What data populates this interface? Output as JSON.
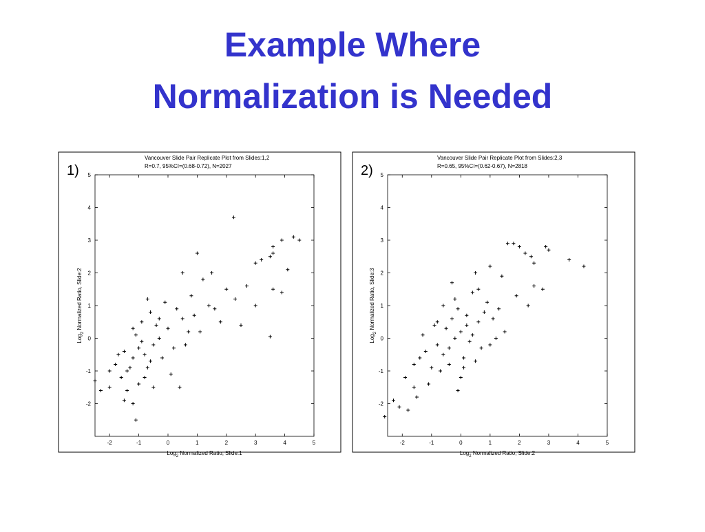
{
  "slide_title": [
    "Example Where",
    "Normalization is Needed"
  ],
  "chart_data": [
    {
      "type": "scatter",
      "panel_label": "1)",
      "title": [
        "Vancouver Slide Pair Replicate Plot from Slides:1,2",
        "R=0.7, 95%CI=(0.68-0.72), N=2027"
      ],
      "xlabel": [
        "Log",
        "2",
        " Normalized Ratio, Slide:1"
      ],
      "ylabel": [
        "Log",
        "2",
        " Normalized Ratio, Slide:2"
      ],
      "xlim": [
        -2.5,
        5
      ],
      "ylim": [
        -3,
        5
      ],
      "xticks": [
        -2,
        -1,
        0,
        1,
        2,
        3,
        4,
        5
      ],
      "yticks": [
        -2,
        -1,
        0,
        1,
        2,
        3,
        4,
        5
      ],
      "color": "#000000",
      "x": [
        2.25,
        4.3,
        4.5,
        3.9,
        3.6,
        3.6,
        3.5,
        4.1,
        3.2,
        3.0,
        1.0,
        0.5,
        1.5,
        3.6,
        3.9,
        3.5,
        2.5,
        1.8,
        -1.1,
        -2.5,
        -2.3,
        -2.0,
        -1.5,
        -1.2,
        0.4,
        3.0,
        2.7,
        2.3,
        2.0,
        1.2,
        -0.8,
        -1.0,
        -0.6,
        -1.2,
        -0.9,
        -0.5,
        -1.4,
        -0.7,
        -1.1,
        -0.3,
        -0.8,
        -1.5,
        -1.6,
        -0.4,
        0.0,
        0.2,
        -0.2,
        0.5,
        0.7,
        -1.3,
        -1.8,
        -0.9,
        -0.6,
        -1.0,
        0.3,
        0.9,
        1.1,
        -0.1,
        -1.7,
        -1.2,
        -0.5,
        0.6,
        1.4,
        -2.0,
        -0.7,
        0.1,
        -1.4,
        -0.3,
        0.8,
        1.6
      ],
      "y": [
        3.7,
        3.1,
        3.0,
        3.0,
        2.8,
        2.6,
        2.5,
        2.1,
        2.4,
        2.3,
        2.6,
        2.0,
        2.0,
        1.5,
        1.4,
        0.05,
        0.4,
        0.5,
        -2.5,
        -1.3,
        -1.6,
        -1.5,
        -1.9,
        -2.0,
        -1.5,
        1.0,
        1.6,
        1.2,
        1.5,
        1.8,
        -0.5,
        -0.3,
        -0.7,
        -0.6,
        -0.1,
        -0.2,
        -1.0,
        -0.9,
        0.1,
        0.0,
        -1.2,
        -0.4,
        -1.2,
        0.4,
        0.3,
        -0.3,
        -0.6,
        0.6,
        0.2,
        -0.9,
        -0.8,
        0.5,
        0.8,
        -1.4,
        0.9,
        0.7,
        0.2,
        1.1,
        -0.5,
        0.3,
        -1.5,
        -0.2,
        1.0,
        -1.0,
        1.2,
        -1.1,
        -1.6,
        0.6,
        1.3,
        0.9
      ]
    },
    {
      "type": "scatter",
      "panel_label": "2)",
      "title": [
        "Vancouver Slide Pair Replicate Plot from Slides:2,3",
        "R=0.65, 95%CI=(0.62-0.67), N=2818"
      ],
      "xlabel": [
        "Log",
        "2",
        " Normalized Ratio, Slide:2"
      ],
      "ylabel": [
        "Log",
        "2",
        " Normalized Ratio, Slide:3"
      ],
      "xlim": [
        -2.5,
        5
      ],
      "ylim": [
        -3,
        5
      ],
      "xticks": [
        -2,
        -1,
        0,
        1,
        2,
        3,
        4,
        5
      ],
      "yticks": [
        -2,
        -1,
        0,
        1,
        2,
        3,
        4,
        5
      ],
      "color": "#000000",
      "x": [
        3.7,
        4.2,
        2.9,
        3.0,
        1.6,
        1.8,
        2.0,
        2.2,
        2.4,
        2.5,
        -2.6,
        -2.3,
        -2.1,
        -1.8,
        2.5,
        2.8,
        2.3,
        -1.5,
        1.0,
        0.5,
        -0.3,
        -1.9,
        -1.6,
        1.4,
        1.9,
        -0.2,
        0.0,
        -0.4,
        0.2,
        -0.6,
        0.4,
        -0.8,
        0.1,
        -0.3,
        0.6,
        -1.0,
        -0.1,
        0.3,
        -0.5,
        0.8,
        -1.2,
        0.5,
        -0.7,
        0.9,
        -1.4,
        0.0,
        1.1,
        -0.9,
        0.7,
        -0.2,
        1.3,
        -1.1,
        0.2,
        -0.6,
        1.5,
        -1.6,
        0.4,
        -0.4,
        1.0,
        -1.3,
        0.1,
        -0.8,
        0.6,
        1.2,
        -0.1
      ],
      "y": [
        2.4,
        2.2,
        2.8,
        2.7,
        2.9,
        2.9,
        2.8,
        2.6,
        2.5,
        2.3,
        -2.4,
        -1.9,
        -2.1,
        -2.2,
        1.6,
        1.5,
        1.0,
        -1.8,
        2.2,
        2.0,
        1.7,
        -1.2,
        -0.8,
        1.9,
        1.3,
        0.0,
        0.2,
        -0.3,
        0.4,
        -0.5,
        0.1,
        -0.2,
        -0.6,
        0.6,
        0.5,
        -0.9,
        0.9,
        -0.1,
        0.3,
        0.8,
        -0.4,
        -0.7,
        -1.0,
        1.1,
        -0.6,
        -1.2,
        0.6,
        0.4,
        -0.3,
        1.2,
        0.9,
        -1.4,
        0.7,
        1.0,
        0.2,
        -1.5,
        1.4,
        -0.8,
        -0.2,
        0.1,
        -0.9,
        0.5,
        1.5,
        0.0,
        -1.6
      ]
    }
  ]
}
